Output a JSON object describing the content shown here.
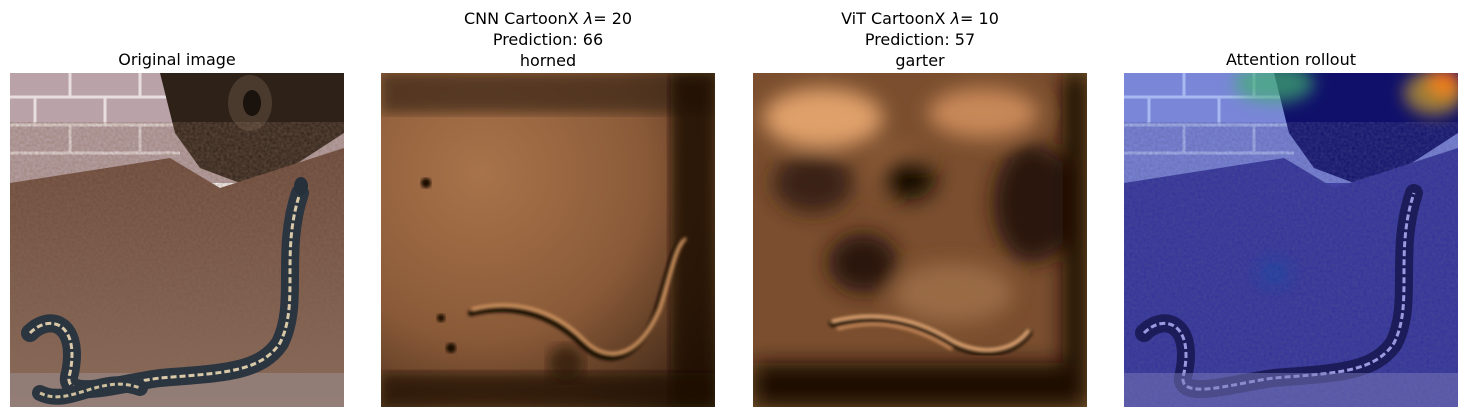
{
  "panels": [
    {
      "title_lines": [
        "Original image"
      ]
    },
    {
      "title_prefix": "CNN CartoonX ",
      "lambda_symbol": "λ",
      "lambda_value": "= 20",
      "title_lines": [
        "Prediction: 66",
        "horned"
      ]
    },
    {
      "title_prefix": "ViT CartoonX ",
      "lambda_symbol": "λ",
      "lambda_value": "= 10",
      "title_lines": [
        "Prediction: 57",
        "garter"
      ]
    },
    {
      "title_lines": [
        "Attention rollout"
      ]
    }
  ],
  "colors": {
    "brick": "#b8a2a6",
    "mulch": "#5a3a2c",
    "snake_dark": "#2b3540",
    "snake_stripe": "#d9c9a8",
    "copper_light": "#e0a06a",
    "copper_dark": "#1a0e06",
    "attention_blue": "#2a2ad8",
    "attention_hot": "#e02020"
  }
}
